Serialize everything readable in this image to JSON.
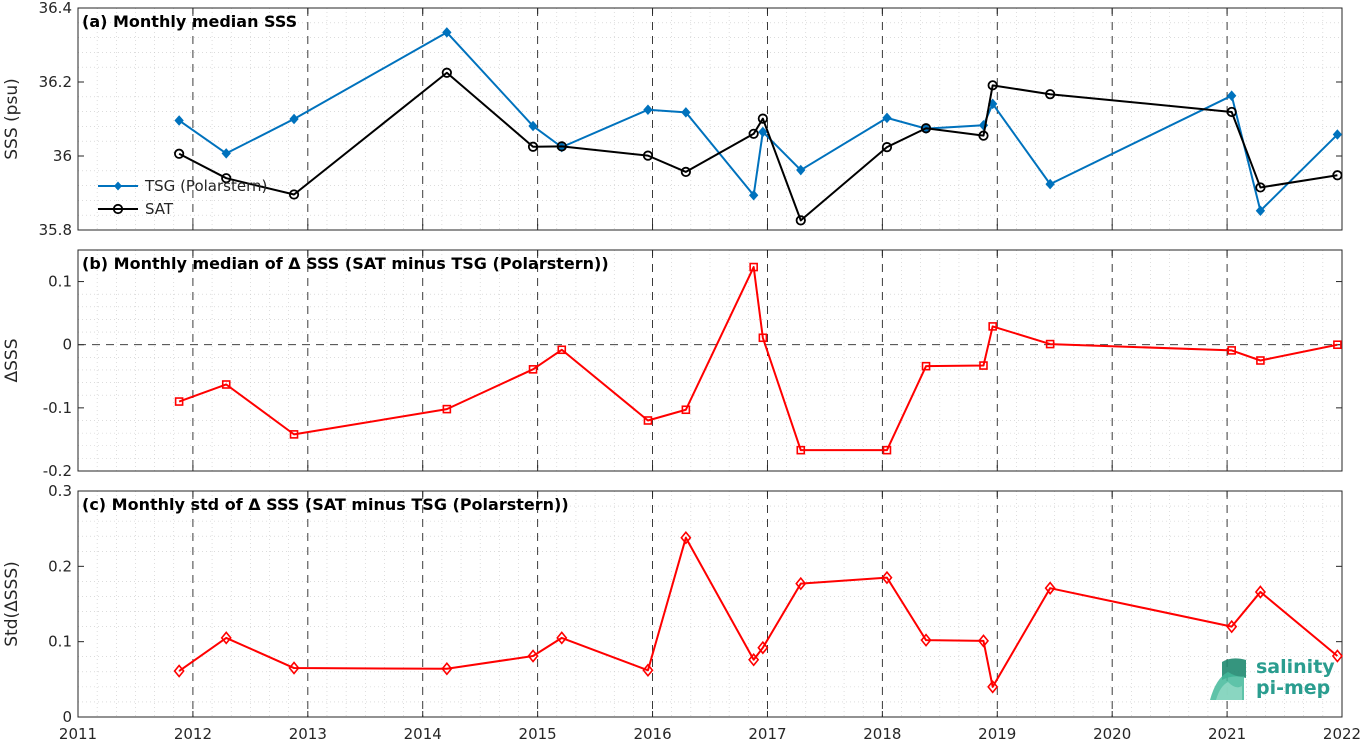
{
  "chart_data": [
    {
      "type": "line",
      "title": "(a) Monthly median SSS",
      "xlabel": "",
      "ylabel": "SSS (psu)",
      "xlim": [
        2011,
        2022
      ],
      "ylim": [
        35.8,
        36.4
      ],
      "yticks": [
        "35.8",
        "36",
        "36.2",
        "36.4"
      ],
      "legend_position": "left",
      "series": [
        {
          "name": "TSG (Polarstern)",
          "color": "#0072BD",
          "marker": "diamond-filled",
          "x": [
            2011.88,
            2012.29,
            2012.88,
            2014.21,
            2014.96,
            2015.21,
            2015.96,
            2016.29,
            2016.88,
            2016.96,
            2017.29,
            2018.04,
            2018.38,
            2018.88,
            2018.96,
            2019.46,
            2021.04,
            2021.29,
            2021.96
          ],
          "y": [
            36.096,
            36.007,
            36.1,
            36.334,
            36.081,
            36.024,
            36.125,
            36.118,
            35.894,
            36.065,
            35.962,
            36.103,
            36.074,
            36.083,
            36.141,
            35.924,
            36.163,
            35.852,
            36.058
          ]
        },
        {
          "name": "SAT",
          "color": "#000000",
          "marker": "circle-open",
          "x": [
            2011.88,
            2012.29,
            2012.88,
            2014.21,
            2014.96,
            2015.21,
            2015.96,
            2016.29,
            2016.88,
            2016.96,
            2017.29,
            2018.04,
            2018.38,
            2018.88,
            2018.96,
            2019.46,
            2021.04,
            2021.29,
            2021.96
          ],
          "y": [
            36.006,
            35.94,
            35.896,
            36.225,
            36.025,
            36.026,
            36.001,
            35.957,
            36.06,
            36.101,
            35.826,
            36.024,
            36.075,
            36.055,
            36.191,
            36.167,
            36.119,
            35.915,
            35.948
          ]
        }
      ]
    },
    {
      "type": "line",
      "title": "(b) Monthly median of Δ SSS (SAT minus TSG (Polarstern))",
      "xlabel": "",
      "ylabel": "ΔSSS",
      "xlim": [
        2011,
        2022
      ],
      "ylim": [
        -0.2,
        0.15
      ],
      "yticks": [
        "-0.2",
        "-0.1",
        "0",
        "0.1"
      ],
      "reference_line": 0,
      "series": [
        {
          "name": "",
          "color": "#FF0000",
          "marker": "square-open",
          "x": [
            2011.88,
            2012.29,
            2012.88,
            2014.21,
            2014.96,
            2015.21,
            2015.96,
            2016.29,
            2016.88,
            2016.96,
            2017.29,
            2018.04,
            2018.38,
            2018.88,
            2018.96,
            2019.46,
            2021.04,
            2021.29,
            2021.96
          ],
          "y": [
            -0.09,
            -0.063,
            -0.142,
            -0.102,
            -0.039,
            -0.008,
            -0.12,
            -0.103,
            0.123,
            0.011,
            -0.167,
            -0.167,
            -0.034,
            -0.033,
            0.029,
            0.001,
            -0.009,
            -0.025,
            0.0
          ]
        }
      ]
    },
    {
      "type": "line",
      "title": "(c) Monthly std of Δ SSS (SAT minus TSG (Polarstern))",
      "xlabel": "",
      "ylabel": "Std(ΔSSS)",
      "xlim": [
        2011,
        2022
      ],
      "ylim": [
        0,
        0.3
      ],
      "yticks": [
        "0",
        "0.1",
        "0.2",
        "0.3"
      ],
      "xticks": [
        "2011",
        "2012",
        "2013",
        "2014",
        "2015",
        "2016",
        "2017",
        "2018",
        "2019",
        "2020",
        "2021",
        "2022"
      ],
      "series": [
        {
          "name": "",
          "color": "#FF0000",
          "marker": "diamond-open",
          "x": [
            2011.88,
            2012.29,
            2012.88,
            2014.21,
            2014.96,
            2015.21,
            2015.96,
            2016.29,
            2016.88,
            2016.96,
            2017.29,
            2018.04,
            2018.38,
            2018.88,
            2018.96,
            2019.46,
            2021.04,
            2021.29,
            2021.96
          ],
          "y": [
            0.061,
            0.105,
            0.065,
            0.064,
            0.081,
            0.105,
            0.062,
            0.238,
            0.076,
            0.092,
            0.177,
            0.185,
            0.102,
            0.101,
            0.04,
            0.171,
            0.12,
            0.166,
            0.081
          ]
        }
      ]
    }
  ],
  "logo": {
    "line1": "salinity",
    "line2": "pi-mep",
    "color": "#2a9d8f"
  }
}
